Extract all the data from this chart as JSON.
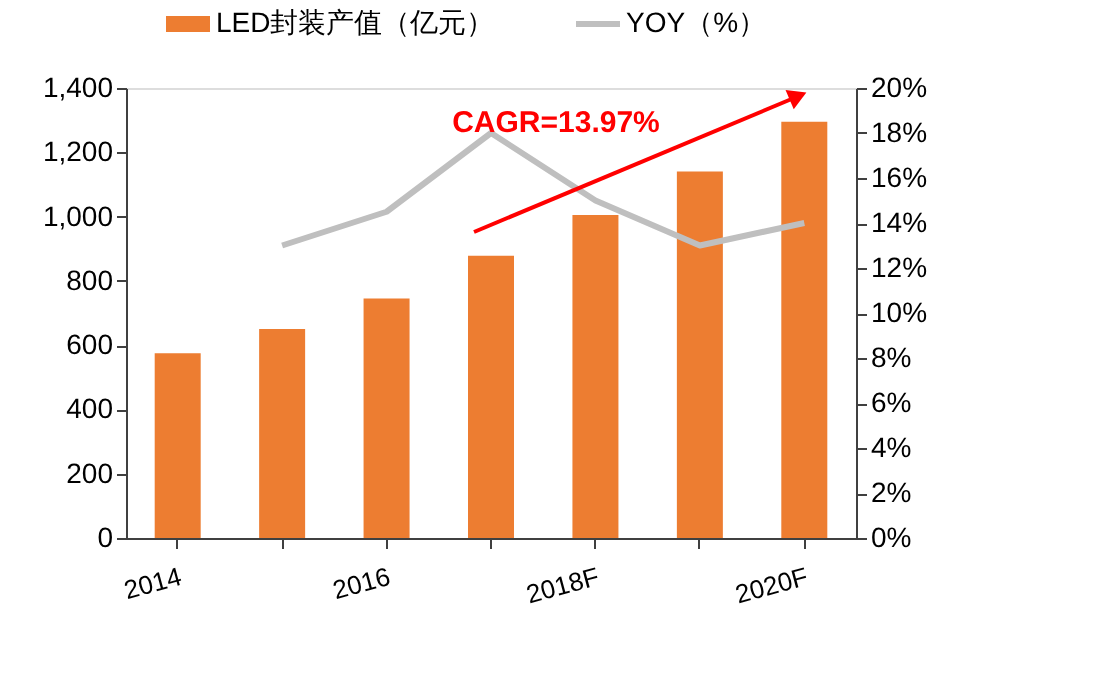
{
  "chart_data": {
    "type": "bar",
    "categories": [
      "2014",
      null,
      "2016",
      null,
      "2018F",
      null,
      "2020F"
    ],
    "series": [
      {
        "name": "LED封装产值（亿元）",
        "color": "#ed7d31",
        "values": [
          575,
          650,
          745,
          878,
          1005,
          1140,
          1295
        ]
      },
      {
        "name": "YOY（%）",
        "type": "line",
        "axis": "y2",
        "color": "#bfbfbf",
        "values": [
          null,
          13,
          14.5,
          18,
          15,
          13,
          14
        ]
      }
    ],
    "ylim": [
      0,
      1400
    ],
    "yticks": [
      {
        "value": 0,
        "label": "0"
      },
      {
        "value": 200,
        "label": "200"
      },
      {
        "value": 400,
        "label": "400"
      },
      {
        "value": 600,
        "label": "600"
      },
      {
        "value": 800,
        "label": "800"
      },
      {
        "value": 1000,
        "label": "1,000"
      },
      {
        "value": 1200,
        "label": "1,200"
      },
      {
        "value": 1400,
        "label": "1,400"
      }
    ],
    "y2lim": [
      0,
      20
    ],
    "y2ticks": [
      {
        "value": 0,
        "label": "0%"
      },
      {
        "value": 2,
        "label": "2%"
      },
      {
        "value": 4,
        "label": "4%"
      },
      {
        "value": 6,
        "label": "6%"
      },
      {
        "value": 8,
        "label": "8%"
      },
      {
        "value": 10,
        "label": "10%"
      },
      {
        "value": 12,
        "label": "12%"
      },
      {
        "value": 14,
        "label": "14%"
      },
      {
        "value": 16,
        "label": "16%"
      },
      {
        "value": 18,
        "label": "18%"
      },
      {
        "value": 20,
        "label": "20%"
      }
    ],
    "annotations": [
      "CAGR=13.97%"
    ],
    "grid": false,
    "legend": "top",
    "marker": "none",
    "line_style": "solid"
  }
}
